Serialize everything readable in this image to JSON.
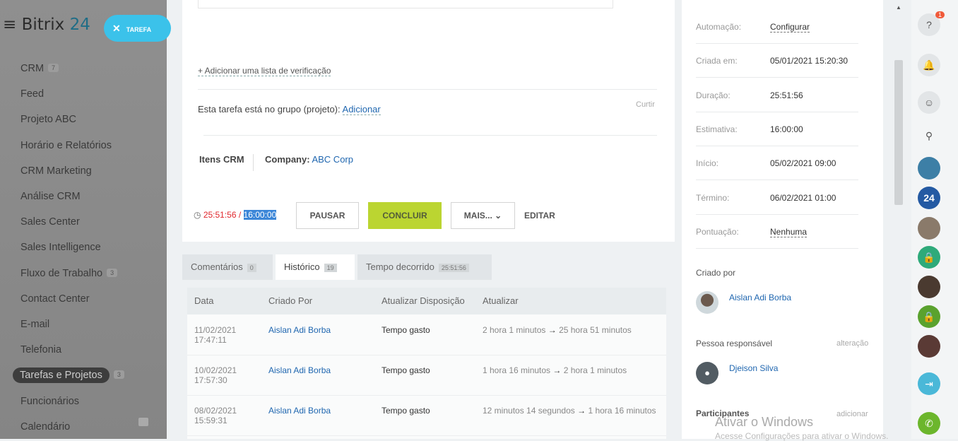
{
  "sidebar": {
    "logo_a": "Bitrix",
    "logo_b": "24",
    "task_button": "TAREFA",
    "items": [
      {
        "label": "CRM",
        "count": "7"
      },
      {
        "label": "Feed"
      },
      {
        "label": "Projeto ABC"
      },
      {
        "label": "Horário e Relatórios"
      },
      {
        "label": "CRM Marketing"
      },
      {
        "label": "Análise CRM"
      },
      {
        "label": "Sales Center"
      },
      {
        "label": "Sales Intelligence"
      },
      {
        "label": "Fluxo de Trabalho",
        "count": "3"
      },
      {
        "label": "Contact Center"
      },
      {
        "label": "E-mail"
      },
      {
        "label": "Telefonia"
      },
      {
        "label": "Tarefas e Projetos",
        "count": "3",
        "active": true
      },
      {
        "label": "Funcionários"
      },
      {
        "label": "Calendário"
      }
    ]
  },
  "task": {
    "add_checklist": "+ Adicionar uma lista de verificação",
    "group_label": "Esta tarefa está no grupo (projeto):",
    "group_add": "Adicionar",
    "like": "Curtir",
    "crm_label": "Itens CRM",
    "company_label": "Company:",
    "company_value": "ABC Corp",
    "timer_spent": "25:51:56",
    "timer_sep": " / ",
    "timer_estimate": "16:00:00",
    "pause": "PAUSAR",
    "complete": "CONCLUIR",
    "more": "MAIS...",
    "edit": "EDITAR",
    "accent": "#bbd531"
  },
  "tabs": [
    {
      "label": "Comentários",
      "count": "0"
    },
    {
      "label": "Histórico",
      "count": "19",
      "active": true
    },
    {
      "label": "Tempo decorrido",
      "count": "25:51:56"
    }
  ],
  "history": {
    "headers": [
      "Data",
      "Criado Por",
      "Atualizar Disposição",
      "Atualizar"
    ],
    "rows": [
      {
        "date": "11/02/2021",
        "time": "17:47:11",
        "by": "Aislan Adi Borba",
        "field": "Tempo gasto",
        "from": "2 hora 1 minutos",
        "to": "25 hora 51 minutos"
      },
      {
        "date": "10/02/2021",
        "time": "17:57:30",
        "by": "Aislan Adi Borba",
        "field": "Tempo gasto",
        "from": "1 hora 16 minutos",
        "to": "2 hora 1 minutos"
      },
      {
        "date": "08/02/2021",
        "time": "15:59:31",
        "by": "Aislan Adi Borba",
        "field": "Tempo gasto",
        "from": "12 minutos 14 segundos",
        "to": "1 hora 16 minutos"
      }
    ]
  },
  "details": {
    "fields": [
      {
        "label": "Automação:",
        "value": "Configurar",
        "link": true
      },
      {
        "label": "Criada em:",
        "value": "05/01/2021 15:20:30"
      },
      {
        "label": "Duração:",
        "value": "25:51:56"
      },
      {
        "label": "Estimativa:",
        "value": "16:00:00"
      },
      {
        "label": "Início:",
        "value": "05/02/2021 09:00"
      },
      {
        "label": "Término:",
        "value": "06/02/2021 01:00"
      },
      {
        "label": "Pontuação:",
        "value": "Nenhuma",
        "link": true
      }
    ],
    "created_by_label": "Criado por",
    "created_by": "Aislan Adi Borba",
    "responsible_label": "Pessoa responsável",
    "responsible_action": "alteração",
    "responsible": "Djeison Silva",
    "participants_label": "Participantes",
    "participants_action": "adicionar"
  },
  "rightbar": {
    "help_badge": "1",
    "b24": "24"
  },
  "watermark": {
    "title": "Ativar o Windows",
    "subtitle": "Acesse Configurações para ativar o Windows."
  }
}
